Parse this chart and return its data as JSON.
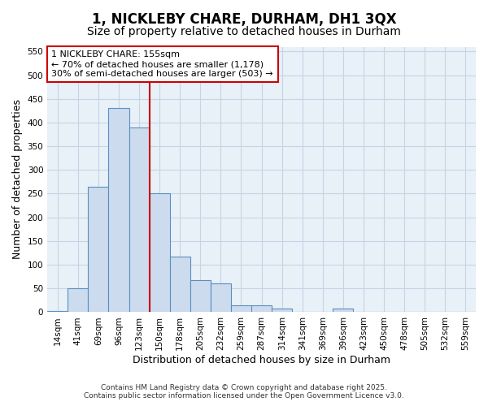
{
  "title": "1, NICKLEBY CHARE, DURHAM, DH1 3QX",
  "subtitle": "Size of property relative to detached houses in Durham",
  "xlabel": "Distribution of detached houses by size in Durham",
  "ylabel": "Number of detached properties",
  "bar_labels": [
    "14sqm",
    "41sqm",
    "69sqm",
    "96sqm",
    "123sqm",
    "150sqm",
    "178sqm",
    "205sqm",
    "232sqm",
    "259sqm",
    "287sqm",
    "314sqm",
    "341sqm",
    "369sqm",
    "396sqm",
    "423sqm",
    "450sqm",
    "478sqm",
    "505sqm",
    "532sqm",
    "559sqm"
  ],
  "bar_values": [
    3,
    50,
    265,
    430,
    390,
    250,
    118,
    68,
    60,
    14,
    14,
    7,
    0,
    0,
    8,
    0,
    0,
    0,
    0,
    0,
    0
  ],
  "bar_color": "#ccdcee",
  "bar_edge_color": "#5b8fbe",
  "ref_line_index": 5,
  "ref_line_label": "1 NICKLEBY CHARE: 155sqm",
  "annotation_line1": "← 70% of detached houses are smaller (1,178)",
  "annotation_line2": "30% of semi-detached houses are larger (503) →",
  "annotation_box_facecolor": "#ffffff",
  "annotation_box_edgecolor": "#cc0000",
  "ref_line_color": "#cc0000",
  "ylim": [
    0,
    560
  ],
  "yticks": [
    0,
    50,
    100,
    150,
    200,
    250,
    300,
    350,
    400,
    450,
    500,
    550
  ],
  "footer1": "Contains HM Land Registry data © Crown copyright and database right 2025.",
  "footer2": "Contains public sector information licensed under the Open Government Licence v3.0.",
  "fig_facecolor": "#ffffff",
  "plot_facecolor": "#e8f0f8",
  "grid_color": "#c5d5e5",
  "title_fontsize": 12,
  "subtitle_fontsize": 10,
  "axis_label_fontsize": 9,
  "tick_fontsize": 7.5,
  "footer_fontsize": 6.5,
  "annot_fontsize": 8
}
